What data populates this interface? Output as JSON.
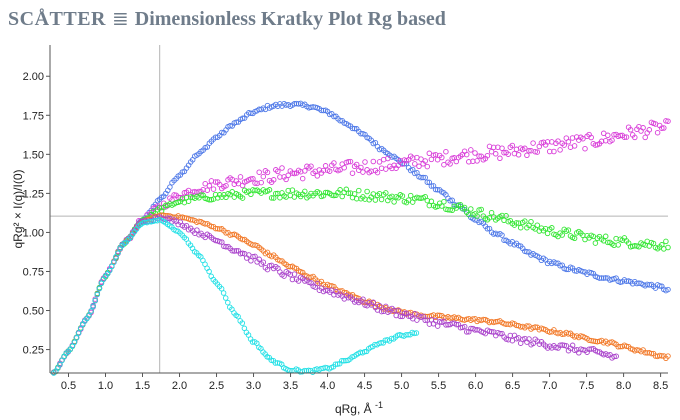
{
  "header": {
    "app_name": "SCÅTTER",
    "separator_glyph": "≣",
    "plot_title": "Dimensionless Kratky Plot Rg based"
  },
  "chart_data": {
    "type": "scatter",
    "title": "Dimensionless Kratky Plot Rg based",
    "xlabel": "qRg, Å",
    "xlabel_sup": "-1",
    "ylabel": "qRg² × I(q)/I(0)",
    "xlim": [
      0.25,
      8.6
    ],
    "ylim": [
      0.1,
      2.2
    ],
    "xticks": [
      "0.5",
      "1.0",
      "1.5",
      "2.0",
      "2.5",
      "3.0",
      "3.5",
      "4.0",
      "4.5",
      "5.0",
      "5.5",
      "6.0",
      "6.5",
      "7.0",
      "7.5",
      "8.0",
      "8.5"
    ],
    "yticks": [
      "0.25",
      "0.50",
      "0.75",
      "1.00",
      "1.25",
      "1.50",
      "1.75",
      "2.00"
    ],
    "reference_lines": {
      "x": 1.732,
      "y": 1.104
    },
    "grid": false,
    "legend": "none",
    "marker": "open-circle",
    "series": [
      {
        "color": "#4f79e8",
        "noise": 0.012,
        "points": [
          [
            0.3,
            0.1
          ],
          [
            0.5,
            0.24
          ],
          [
            0.75,
            0.45
          ],
          [
            1.0,
            0.72
          ],
          [
            1.25,
            0.93
          ],
          [
            1.5,
            1.08
          ],
          [
            1.75,
            1.22
          ],
          [
            2.0,
            1.37
          ],
          [
            2.25,
            1.5
          ],
          [
            2.5,
            1.61
          ],
          [
            2.75,
            1.7
          ],
          [
            3.0,
            1.77
          ],
          [
            3.25,
            1.81
          ],
          [
            3.5,
            1.82
          ],
          [
            3.75,
            1.81
          ],
          [
            4.0,
            1.77
          ],
          [
            4.25,
            1.7
          ],
          [
            4.5,
            1.62
          ],
          [
            4.75,
            1.53
          ],
          [
            5.0,
            1.45
          ],
          [
            5.25,
            1.36
          ],
          [
            5.5,
            1.27
          ],
          [
            5.75,
            1.18
          ],
          [
            6.0,
            1.08
          ],
          [
            6.25,
            1.0
          ],
          [
            6.5,
            0.93
          ],
          [
            6.75,
            0.86
          ],
          [
            7.0,
            0.81
          ],
          [
            7.25,
            0.77
          ],
          [
            7.5,
            0.74
          ],
          [
            7.75,
            0.71
          ],
          [
            8.0,
            0.69
          ],
          [
            8.25,
            0.67
          ],
          [
            8.5,
            0.65
          ],
          [
            8.6,
            0.63
          ]
        ]
      },
      {
        "color": "#d93fd9",
        "noise": 0.045,
        "points": [
          [
            0.3,
            0.1
          ],
          [
            0.5,
            0.24
          ],
          [
            0.75,
            0.45
          ],
          [
            1.0,
            0.72
          ],
          [
            1.25,
            0.93
          ],
          [
            1.5,
            1.08
          ],
          [
            1.75,
            1.17
          ],
          [
            2.0,
            1.24
          ],
          [
            2.25,
            1.28
          ],
          [
            2.5,
            1.31
          ],
          [
            2.75,
            1.33
          ],
          [
            3.0,
            1.35
          ],
          [
            3.25,
            1.36
          ],
          [
            3.5,
            1.38
          ],
          [
            3.75,
            1.39
          ],
          [
            4.0,
            1.4
          ],
          [
            4.25,
            1.41
          ],
          [
            4.5,
            1.42
          ],
          [
            4.75,
            1.43
          ],
          [
            5.0,
            1.44
          ],
          [
            5.25,
            1.46
          ],
          [
            5.5,
            1.47
          ],
          [
            5.75,
            1.49
          ],
          [
            6.0,
            1.5
          ],
          [
            6.25,
            1.51
          ],
          [
            6.5,
            1.52
          ],
          [
            6.75,
            1.54
          ],
          [
            7.0,
            1.55
          ],
          [
            7.25,
            1.57
          ],
          [
            7.5,
            1.58
          ],
          [
            7.75,
            1.6
          ],
          [
            8.0,
            1.63
          ],
          [
            8.25,
            1.65
          ],
          [
            8.5,
            1.67
          ],
          [
            8.6,
            1.67
          ]
        ]
      },
      {
        "color": "#33e633",
        "noise": 0.03,
        "points": [
          [
            0.3,
            0.1
          ],
          [
            0.5,
            0.24
          ],
          [
            0.75,
            0.45
          ],
          [
            1.0,
            0.72
          ],
          [
            1.25,
            0.93
          ],
          [
            1.5,
            1.08
          ],
          [
            1.75,
            1.15
          ],
          [
            2.0,
            1.2
          ],
          [
            2.25,
            1.22
          ],
          [
            2.5,
            1.23
          ],
          [
            2.75,
            1.24
          ],
          [
            3.0,
            1.25
          ],
          [
            3.25,
            1.25
          ],
          [
            3.5,
            1.25
          ],
          [
            3.75,
            1.25
          ],
          [
            4.0,
            1.25
          ],
          [
            4.25,
            1.25
          ],
          [
            4.5,
            1.24
          ],
          [
            4.75,
            1.23
          ],
          [
            5.0,
            1.22
          ],
          [
            5.25,
            1.21
          ],
          [
            5.5,
            1.19
          ],
          [
            5.75,
            1.16
          ],
          [
            6.0,
            1.13
          ],
          [
            6.25,
            1.1
          ],
          [
            6.5,
            1.07
          ],
          [
            6.75,
            1.04
          ],
          [
            7.0,
            1.01
          ],
          [
            7.25,
            0.99
          ],
          [
            7.5,
            0.97
          ],
          [
            7.75,
            0.95
          ],
          [
            8.0,
            0.94
          ],
          [
            8.25,
            0.93
          ],
          [
            8.5,
            0.92
          ],
          [
            8.6,
            0.92
          ]
        ]
      },
      {
        "color": "#f27a2a",
        "noise": 0.01,
        "points": [
          [
            0.3,
            0.1
          ],
          [
            0.5,
            0.24
          ],
          [
            0.75,
            0.45
          ],
          [
            1.0,
            0.72
          ],
          [
            1.25,
            0.93
          ],
          [
            1.5,
            1.07
          ],
          [
            1.75,
            1.11
          ],
          [
            2.0,
            1.1
          ],
          [
            2.25,
            1.07
          ],
          [
            2.5,
            1.03
          ],
          [
            2.75,
            0.98
          ],
          [
            3.0,
            0.92
          ],
          [
            3.25,
            0.85
          ],
          [
            3.5,
            0.78
          ],
          [
            3.75,
            0.72
          ],
          [
            4.0,
            0.66
          ],
          [
            4.25,
            0.61
          ],
          [
            4.5,
            0.56
          ],
          [
            4.75,
            0.52
          ],
          [
            5.0,
            0.49
          ],
          [
            5.25,
            0.47
          ],
          [
            5.5,
            0.46
          ],
          [
            5.75,
            0.45
          ],
          [
            6.0,
            0.44
          ],
          [
            6.25,
            0.43
          ],
          [
            6.5,
            0.41
          ],
          [
            6.75,
            0.39
          ],
          [
            7.0,
            0.37
          ],
          [
            7.25,
            0.35
          ],
          [
            7.5,
            0.32
          ],
          [
            7.75,
            0.3
          ],
          [
            8.0,
            0.27
          ],
          [
            8.25,
            0.24
          ],
          [
            8.5,
            0.21
          ],
          [
            8.6,
            0.2
          ]
        ]
      },
      {
        "color": "#aa44cc",
        "noise": 0.022,
        "points": [
          [
            0.3,
            0.1
          ],
          [
            0.5,
            0.24
          ],
          [
            0.75,
            0.45
          ],
          [
            1.0,
            0.72
          ],
          [
            1.25,
            0.93
          ],
          [
            1.5,
            1.07
          ],
          [
            1.75,
            1.1
          ],
          [
            2.0,
            1.06
          ],
          [
            2.25,
            1.0
          ],
          [
            2.5,
            0.95
          ],
          [
            2.75,
            0.89
          ],
          [
            3.0,
            0.83
          ],
          [
            3.25,
            0.77
          ],
          [
            3.5,
            0.72
          ],
          [
            3.75,
            0.67
          ],
          [
            4.0,
            0.63
          ],
          [
            4.25,
            0.59
          ],
          [
            4.5,
            0.55
          ],
          [
            4.75,
            0.51
          ],
          [
            5.0,
            0.48
          ],
          [
            5.25,
            0.45
          ],
          [
            5.5,
            0.42
          ],
          [
            5.75,
            0.4
          ],
          [
            6.0,
            0.37
          ],
          [
            6.25,
            0.35
          ],
          [
            6.5,
            0.32
          ],
          [
            6.75,
            0.3
          ],
          [
            7.0,
            0.28
          ],
          [
            7.25,
            0.26
          ],
          [
            7.5,
            0.24
          ],
          [
            7.75,
            0.22
          ],
          [
            7.9,
            0.2
          ]
        ]
      },
      {
        "color": "#22e0e6",
        "noise": 0.008,
        "points": [
          [
            0.3,
            0.1
          ],
          [
            0.5,
            0.24
          ],
          [
            0.75,
            0.45
          ],
          [
            1.0,
            0.72
          ],
          [
            1.25,
            0.93
          ],
          [
            1.5,
            1.06
          ],
          [
            1.75,
            1.08
          ],
          [
            2.0,
            1.0
          ],
          [
            2.25,
            0.86
          ],
          [
            2.5,
            0.68
          ],
          [
            2.75,
            0.48
          ],
          [
            3.0,
            0.3
          ],
          [
            3.25,
            0.18
          ],
          [
            3.5,
            0.12
          ],
          [
            3.75,
            0.11
          ],
          [
            4.0,
            0.13
          ],
          [
            4.25,
            0.18
          ],
          [
            4.5,
            0.24
          ],
          [
            4.75,
            0.3
          ],
          [
            5.0,
            0.34
          ],
          [
            5.2,
            0.36
          ]
        ]
      }
    ]
  }
}
